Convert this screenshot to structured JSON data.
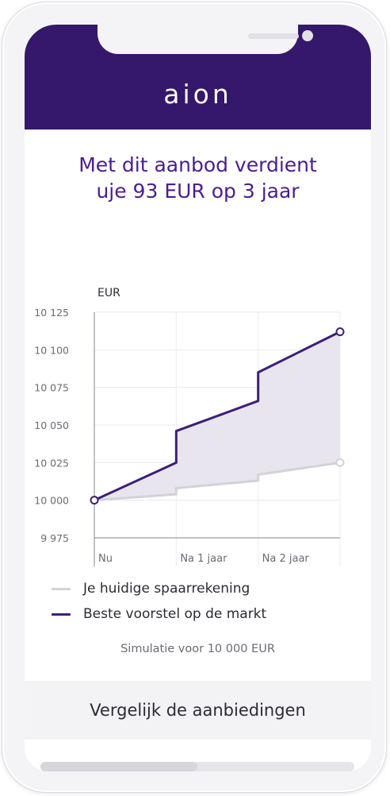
{
  "app": {
    "logo": "aion"
  },
  "headline": {
    "line1": "Met dit aanbod verdient",
    "line2": "uje 93 EUR op 3 jaar"
  },
  "colors": {
    "brand": "#35176b",
    "headline": "#4b1d93",
    "best_offer": "#3e1f78",
    "current_account": "#d2d2d8",
    "area_fill": "#e9e5ee"
  },
  "chart_data": {
    "type": "line",
    "ylabel": "EUR",
    "categories": [
      "Nu",
      "Na 1 jaar",
      "Na 2 jaar"
    ],
    "ylim": [
      9975,
      10125
    ],
    "yticks": [
      9975,
      10000,
      10025,
      10050,
      10075,
      10100,
      10125
    ],
    "ytick_labels": [
      "9 975",
      "10 000",
      "10 025",
      "10 050",
      "10 075",
      "10 100",
      "10 125"
    ],
    "grid": true,
    "series": [
      {
        "name": "Je huidige spaarrekening",
        "color": "#d2d2d8",
        "points": [
          {
            "x": 0,
            "y": 10000
          },
          {
            "x": 1,
            "y": 10004
          },
          {
            "x": 1,
            "y": 10008
          },
          {
            "x": 2,
            "y": 10013
          },
          {
            "x": 2,
            "y": 10017
          },
          {
            "x": 3,
            "y": 10025
          }
        ]
      },
      {
        "name": "Beste voorstel op de markt",
        "color": "#3e1f78",
        "points": [
          {
            "x": 0,
            "y": 10000
          },
          {
            "x": 1,
            "y": 10025
          },
          {
            "x": 1,
            "y": 10046
          },
          {
            "x": 2,
            "y": 10066
          },
          {
            "x": 2,
            "y": 10085
          },
          {
            "x": 3,
            "y": 10112
          }
        ]
      }
    ]
  },
  "legend": [
    {
      "label": "Je huidige spaarrekening",
      "color": "#d2d2d8"
    },
    {
      "label": "Beste voorstel op de markt",
      "color": "#3e1f78"
    }
  ],
  "simulation_text": "Simulatie voor 10 000 EUR",
  "compare_button": "Vergelijk de aanbiedingen"
}
